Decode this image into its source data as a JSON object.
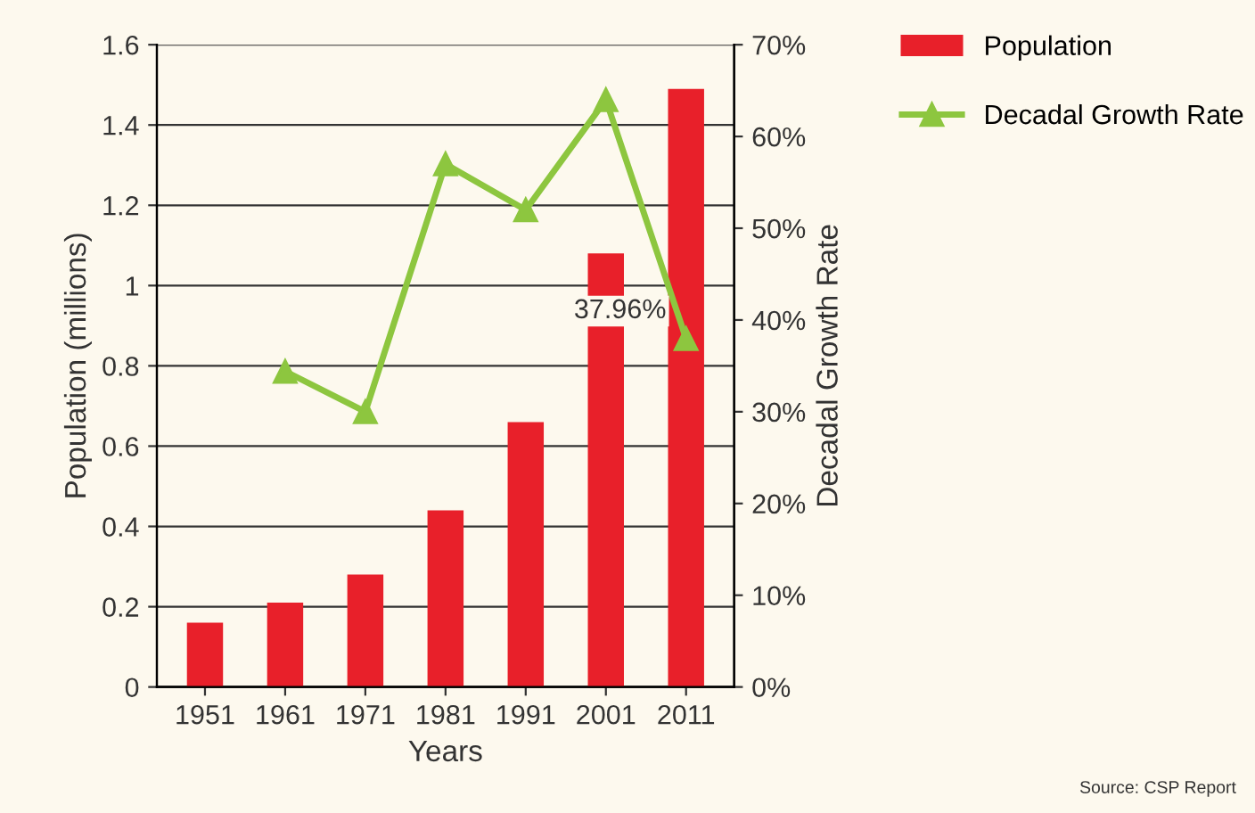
{
  "chart_data": {
    "type": "bar",
    "xlabel": "Years",
    "ylabel": "Population (millions)",
    "y2label": "Decadal Growth Rate",
    "categories": [
      "1951",
      "1961",
      "1971",
      "1981",
      "1991",
      "2001",
      "2011"
    ],
    "series": [
      {
        "name": "Population",
        "color": "#e8202a",
        "values": [
          0.16,
          0.21,
          0.28,
          0.44,
          0.66,
          1.08,
          1.49
        ]
      },
      {
        "name": "Decadal Growth Rate",
        "type": "line",
        "axis": "y2",
        "color": "#8dc63f",
        "marker": "triangle",
        "values": [
          null,
          34.4,
          30,
          57,
          52,
          64,
          37.96
        ],
        "value_labels": [
          null,
          null,
          null,
          null,
          null,
          null,
          "37.96%"
        ]
      }
    ],
    "ylim": [
      0,
      1.6
    ],
    "yticks": [
      0,
      0.2,
      0.4,
      0.6,
      0.8,
      1,
      1.2,
      1.4,
      1.6
    ],
    "y2lim": [
      0,
      70
    ],
    "y2ticks": [
      {
        "value": 0,
        "label": "0%"
      },
      {
        "value": 10,
        "label": "10%"
      },
      {
        "value": 20,
        "label": "20%"
      },
      {
        "value": 30,
        "label": "30%"
      },
      {
        "value": 40,
        "label": "40%"
      },
      {
        "value": 50,
        "label": "50%"
      },
      {
        "value": 60,
        "label": "60%"
      },
      {
        "value": 70,
        "label": "70%"
      }
    ],
    "grid": "y",
    "legend": "right",
    "annotations": [
      "Source: CSP Report"
    ]
  }
}
